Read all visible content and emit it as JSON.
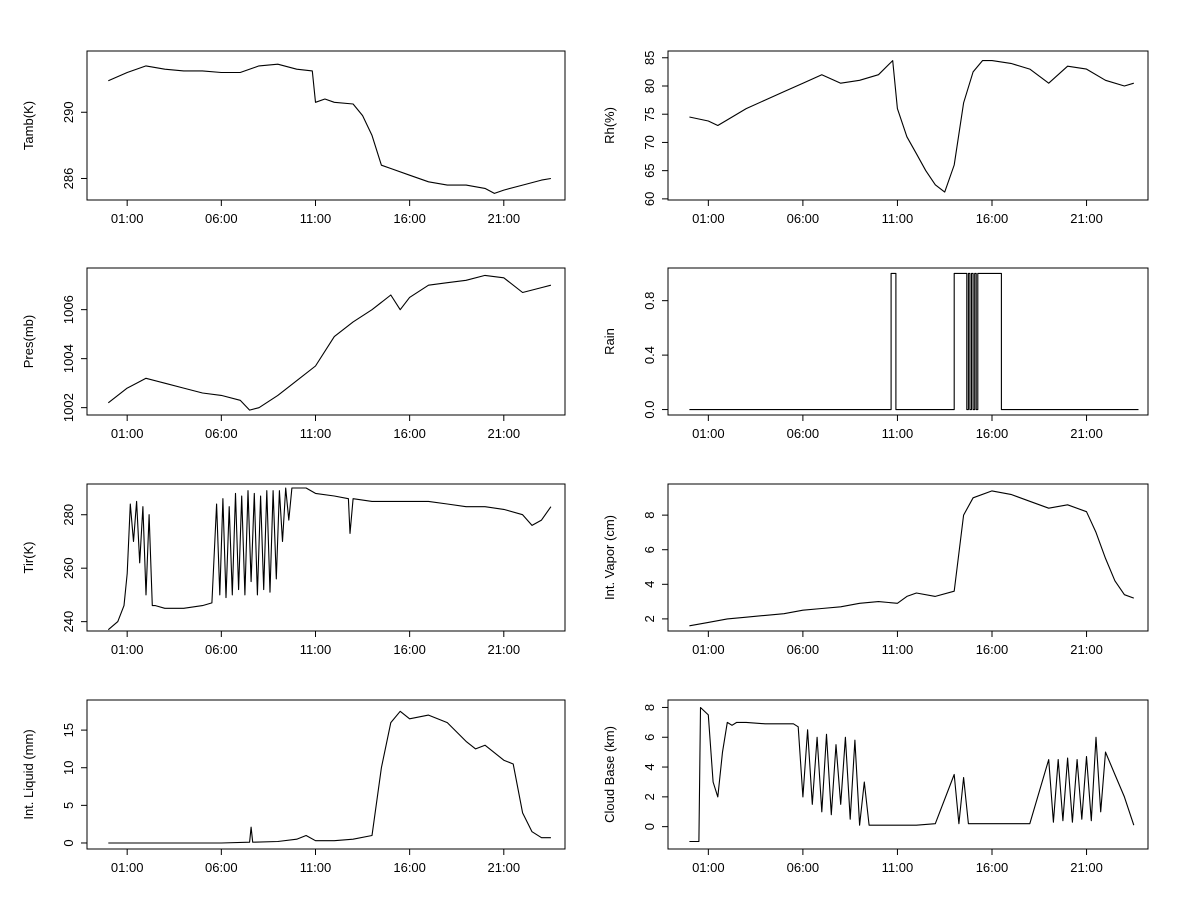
{
  "chart_data": [
    {
      "type": "line",
      "ylabel": "Tamb(K)",
      "x_ticks": [
        "01:00",
        "06:00",
        "11:00",
        "16:00",
        "21:00"
      ],
      "y_ticks": [
        286,
        290
      ],
      "y_tick_labels": [
        "286",
        "290"
      ],
      "ylim": [
        284.7,
        293.7
      ],
      "series": [
        {
          "x": [
            "00:00",
            "01:00",
            "02:00",
            "03:00",
            "04:00",
            "05:00",
            "06:00",
            "07:00",
            "08:00",
            "09:00",
            "10:00",
            "10:50",
            "11:00",
            "11:30",
            "12:00",
            "13:00",
            "13:30",
            "14:00",
            "14:30",
            "15:00",
            "16:00",
            "17:00",
            "18:00",
            "19:00",
            "20:00",
            "20:30",
            "21:00",
            "22:00",
            "23:00",
            "23:30"
          ],
          "y": [
            291.9,
            292.4,
            292.8,
            292.6,
            292.5,
            292.5,
            292.4,
            292.4,
            292.8,
            292.9,
            292.6,
            292.5,
            290.6,
            290.8,
            290.6,
            290.5,
            289.8,
            288.6,
            286.8,
            286.6,
            286.2,
            285.8,
            285.6,
            285.6,
            285.4,
            285.1,
            285.3,
            285.6,
            285.9,
            286.0
          ]
        }
      ]
    },
    {
      "type": "line",
      "ylabel": "Rh(%)",
      "x_ticks": [
        "01:00",
        "06:00",
        "11:00",
        "16:00",
        "21:00"
      ],
      "y_ticks": [
        60,
        65,
        70,
        75,
        80,
        85
      ],
      "y_tick_labels": [
        "60",
        "65",
        "70",
        "75",
        "80",
        "85"
      ],
      "ylim": [
        59.8,
        86.2
      ],
      "series": [
        {
          "x": [
            "00:00",
            "01:00",
            "01:30",
            "02:00",
            "03:00",
            "04:00",
            "05:00",
            "06:00",
            "07:00",
            "08:00",
            "09:00",
            "10:00",
            "10:45",
            "11:00",
            "11:30",
            "12:00",
            "12:30",
            "13:00",
            "13:30",
            "14:00",
            "14:30",
            "15:00",
            "15:30",
            "16:00",
            "17:00",
            "18:00",
            "19:00",
            "20:00",
            "21:00",
            "22:00",
            "23:00",
            "23:30"
          ],
          "y": [
            74.5,
            73.8,
            73.0,
            74.0,
            76.0,
            77.5,
            79.0,
            80.5,
            82.0,
            80.5,
            81.0,
            82.0,
            84.5,
            76.0,
            71.0,
            68.0,
            65.0,
            62.5,
            61.2,
            66.0,
            77.0,
            82.5,
            84.5,
            84.5,
            84.0,
            83.0,
            80.5,
            83.5,
            83.0,
            81.0,
            80.0,
            80.5
          ]
        }
      ]
    },
    {
      "type": "line",
      "ylabel": "Pres(mb)",
      "x_ticks": [
        "01:00",
        "06:00",
        "11:00",
        "16:00",
        "21:00"
      ],
      "y_ticks": [
        1002,
        1004,
        1006
      ],
      "y_tick_labels": [
        "1002",
        "1004",
        "1006"
      ],
      "ylim": [
        1001.7,
        1007.7
      ],
      "series": [
        {
          "x": [
            "00:00",
            "01:00",
            "02:00",
            "03:00",
            "04:00",
            "05:00",
            "06:00",
            "07:00",
            "07:30",
            "08:00",
            "09:00",
            "10:00",
            "11:00",
            "12:00",
            "13:00",
            "14:00",
            "15:00",
            "15:30",
            "16:00",
            "17:00",
            "18:00",
            "19:00",
            "20:00",
            "21:00",
            "22:00",
            "23:00",
            "23:30"
          ],
          "y": [
            1002.2,
            1002.8,
            1003.2,
            1003.0,
            1002.8,
            1002.6,
            1002.5,
            1002.3,
            1001.9,
            1002.0,
            1002.5,
            1003.1,
            1003.7,
            1004.9,
            1005.5,
            1006.0,
            1006.6,
            1006.0,
            1006.5,
            1007.0,
            1007.1,
            1007.2,
            1007.4,
            1007.3,
            1006.7,
            1006.9,
            1007.0
          ]
        }
      ]
    },
    {
      "type": "line",
      "ylabel": "Rain",
      "x_ticks": [
        "01:00",
        "06:00",
        "11:00",
        "16:00",
        "21:00"
      ],
      "y_ticks": [
        0.0,
        0.4,
        0.8
      ],
      "y_tick_labels": [
        "0.0",
        "0.4",
        "0.8"
      ],
      "ylim": [
        -0.04,
        1.04
      ],
      "series": [
        {
          "x": [
            "00:00",
            "10:40",
            "10:40",
            "10:55",
            "10:55",
            "14:00",
            "14:00",
            "14:40",
            "14:40",
            "14:45",
            "14:45",
            "14:50",
            "14:50",
            "14:55",
            "14:55",
            "15:00",
            "15:00",
            "15:05",
            "15:05",
            "15:10",
            "15:10",
            "15:15",
            "15:15",
            "16:30",
            "16:30",
            "23:45"
          ],
          "y": [
            0,
            0,
            1,
            1,
            0,
            0,
            1,
            1,
            0,
            0,
            1,
            1,
            0,
            0,
            1,
            1,
            0,
            0,
            1,
            1,
            0,
            0,
            1,
            1,
            0,
            0
          ]
        }
      ]
    },
    {
      "type": "line",
      "ylabel": "Tir(K)",
      "x_ticks": [
        "01:00",
        "06:00",
        "11:00",
        "16:00",
        "21:00"
      ],
      "y_ticks": [
        240,
        260,
        280
      ],
      "y_tick_labels": [
        "240",
        "260",
        "280"
      ],
      "ylim": [
        236.5,
        291.5
      ],
      "series": [
        {
          "x": [
            "00:00",
            "00:30",
            "00:50",
            "01:00",
            "01:10",
            "01:20",
            "01:30",
            "01:40",
            "01:50",
            "02:00",
            "02:10",
            "02:20",
            "02:30",
            "03:00",
            "04:00",
            "05:00",
            "05:30",
            "05:45",
            "05:55",
            "06:05",
            "06:15",
            "06:25",
            "06:35",
            "06:45",
            "06:55",
            "07:05",
            "07:15",
            "07:25",
            "07:35",
            "07:45",
            "07:55",
            "08:05",
            "08:15",
            "08:25",
            "08:35",
            "08:45",
            "08:55",
            "09:05",
            "09:15",
            "09:25",
            "09:35",
            "09:45",
            "10:00",
            "10:30",
            "11:00",
            "12:00",
            "12:45",
            "12:50",
            "13:00",
            "14:00",
            "15:00",
            "16:00",
            "17:00",
            "18:00",
            "19:00",
            "20:00",
            "21:00",
            "22:00",
            "22:30",
            "23:00",
            "23:30"
          ],
          "y": [
            237,
            240,
            246,
            258,
            284,
            270,
            285,
            262,
            283,
            250,
            280,
            246,
            246,
            245,
            245,
            246,
            247,
            284,
            250,
            286,
            249,
            283,
            250,
            288,
            252,
            287,
            250,
            289,
            255,
            288,
            250,
            287,
            252,
            289,
            251,
            289,
            256,
            289,
            270,
            290,
            278,
            290,
            290,
            290,
            288,
            287,
            286,
            273,
            286,
            285,
            285,
            285,
            285,
            284,
            283,
            283,
            282,
            280,
            276,
            278,
            283
          ]
        }
      ]
    },
    {
      "type": "line",
      "ylabel": "Int. Vapor (cm)",
      "x_ticks": [
        "01:00",
        "06:00",
        "11:00",
        "16:00",
        "21:00"
      ],
      "y_ticks": [
        2,
        4,
        6,
        8
      ],
      "y_tick_labels": [
        "2",
        "4",
        "6",
        "8"
      ],
      "ylim": [
        1.3,
        9.8
      ],
      "series": [
        {
          "x": [
            "00:00",
            "01:00",
            "02:00",
            "03:00",
            "04:00",
            "05:00",
            "06:00",
            "07:00",
            "08:00",
            "09:00",
            "10:00",
            "11:00",
            "11:30",
            "12:00",
            "13:00",
            "14:00",
            "14:30",
            "15:00",
            "16:00",
            "17:00",
            "18:00",
            "19:00",
            "20:00",
            "21:00",
            "21:30",
            "22:00",
            "22:30",
            "23:00",
            "23:30"
          ],
          "y": [
            1.6,
            1.8,
            2.0,
            2.1,
            2.2,
            2.3,
            2.5,
            2.6,
            2.7,
            2.9,
            3.0,
            2.9,
            3.3,
            3.5,
            3.3,
            3.6,
            8.0,
            9.0,
            9.4,
            9.2,
            8.8,
            8.4,
            8.6,
            8.2,
            7.0,
            5.5,
            4.2,
            3.4,
            3.2
          ]
        }
      ]
    },
    {
      "type": "line",
      "ylabel": "Int. Liquid (mm)",
      "x_ticks": [
        "01:00",
        "06:00",
        "11:00",
        "16:00",
        "21:00"
      ],
      "y_ticks": [
        0,
        5,
        10,
        15
      ],
      "y_tick_labels": [
        "0",
        "5",
        "10",
        "15"
      ],
      "ylim": [
        -0.8,
        19.0
      ],
      "series": [
        {
          "x": [
            "00:00",
            "06:00",
            "07:30",
            "07:35",
            "07:40",
            "09:00",
            "10:00",
            "10:30",
            "11:00",
            "12:00",
            "13:00",
            "14:00",
            "14:30",
            "15:00",
            "15:30",
            "16:00",
            "17:00",
            "18:00",
            "19:00",
            "19:30",
            "20:00",
            "21:00",
            "21:30",
            "22:00",
            "22:30",
            "23:00",
            "23:30"
          ],
          "y": [
            0,
            0,
            0.1,
            2.1,
            0.1,
            0.2,
            0.5,
            1.0,
            0.3,
            0.3,
            0.5,
            1.0,
            10.0,
            16.0,
            17.5,
            16.5,
            17.0,
            16.0,
            13.5,
            12.5,
            13.0,
            11.0,
            10.5,
            4.0,
            1.5,
            0.7,
            0.7
          ]
        }
      ]
    },
    {
      "type": "line",
      "ylabel": "Cloud Base (km)",
      "x_ticks": [
        "01:00",
        "06:00",
        "11:00",
        "16:00",
        "21:00"
      ],
      "y_ticks": [
        0,
        2,
        4,
        6,
        8
      ],
      "y_tick_labels": [
        "0",
        "2",
        "4",
        "6",
        "8"
      ],
      "ylim": [
        -1.5,
        8.5
      ],
      "series": [
        {
          "x": [
            "00:00",
            "00:30",
            "00:35",
            "01:00",
            "01:15",
            "01:30",
            "01:45",
            "02:00",
            "02:15",
            "02:30",
            "03:00",
            "04:00",
            "05:00",
            "05:30",
            "05:45",
            "06:00",
            "06:15",
            "06:30",
            "06:45",
            "07:00",
            "07:15",
            "07:30",
            "07:45",
            "08:00",
            "08:15",
            "08:30",
            "08:45",
            "09:00",
            "09:15",
            "09:30",
            "09:45",
            "10:00",
            "11:00",
            "12:00",
            "13:00",
            "14:00",
            "14:15",
            "14:30",
            "14:45",
            "15:00",
            "16:00",
            "17:00",
            "18:00",
            "19:00",
            "19:15",
            "19:30",
            "19:45",
            "20:00",
            "20:15",
            "20:30",
            "20:45",
            "21:00",
            "21:15",
            "21:30",
            "21:45",
            "22:00",
            "22:30",
            "23:00",
            "23:30"
          ],
          "y": [
            -1.0,
            -1.0,
            8.0,
            7.5,
            3.0,
            2.0,
            5.0,
            7.0,
            6.8,
            7.0,
            7.0,
            6.9,
            6.9,
            6.9,
            6.7,
            2.0,
            6.5,
            1.5,
            6.0,
            1.0,
            6.2,
            0.8,
            5.5,
            1.5,
            6.0,
            0.5,
            5.8,
            0.1,
            3.0,
            0.1,
            0.1,
            0.1,
            0.1,
            0.1,
            0.2,
            3.5,
            0.2,
            3.3,
            0.2,
            0.2,
            0.2,
            0.2,
            0.2,
            4.5,
            0.3,
            4.5,
            0.4,
            4.6,
            0.3,
            4.5,
            0.5,
            4.7,
            0.4,
            6.0,
            1.0,
            5.0,
            3.5,
            2.0,
            0.1
          ]
        }
      ]
    }
  ]
}
